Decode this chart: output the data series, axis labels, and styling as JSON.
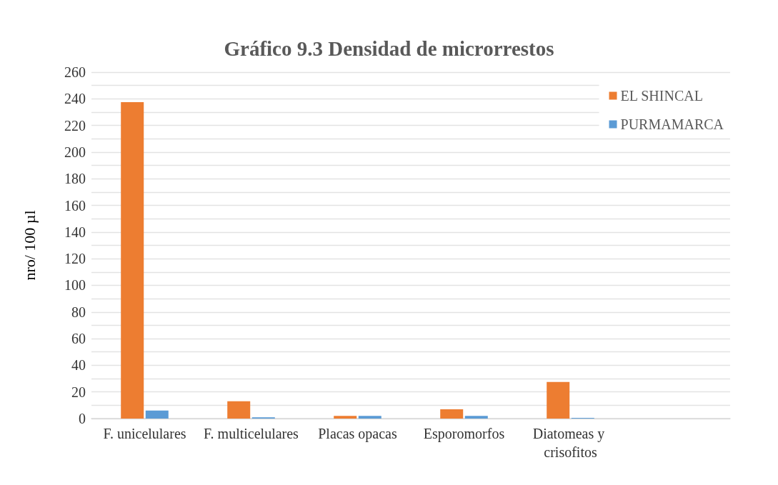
{
  "chart_data": {
    "type": "bar",
    "title": "Gráfico 9.3 Densidad de microrrestos",
    "ylabel": "nro/ 100 µl",
    "categories": [
      "F. unicelulares",
      "F. multicelulares",
      "Placas opacas",
      "Esporomorfos",
      "Diatomeas y crisofitos",
      null
    ],
    "series": [
      {
        "name": "EL SHINCAL",
        "color": "#ed7d31",
        "values": [
          237.5,
          13,
          2,
          7,
          27.5,
          null
        ]
      },
      {
        "name": "PURMAMARCA",
        "color": "#5b9bd5",
        "values": [
          6,
          1,
          2,
          2,
          0.5,
          null
        ]
      }
    ],
    "ylim": [
      0,
      260
    ],
    "yticks": [
      0,
      {
        "value": 10,
        "label": null
      },
      20,
      {
        "value": 30,
        "label": null
      },
      40,
      {
        "value": 50,
        "label": null
      },
      60,
      {
        "value": 70,
        "label": null
      },
      80,
      {
        "value": 90,
        "label": null
      },
      100,
      {
        "value": 110,
        "label": null
      },
      120,
      {
        "value": 130,
        "label": null
      },
      140,
      {
        "value": 150,
        "label": null
      },
      160,
      {
        "value": 170,
        "label": null
      },
      180,
      {
        "value": 190,
        "label": null
      },
      200,
      {
        "value": 210,
        "label": null
      },
      220,
      {
        "value": 230,
        "label": null
      },
      240,
      {
        "value": 250,
        "label": null
      },
      260
    ],
    "grid": true,
    "legend": "top right"
  }
}
